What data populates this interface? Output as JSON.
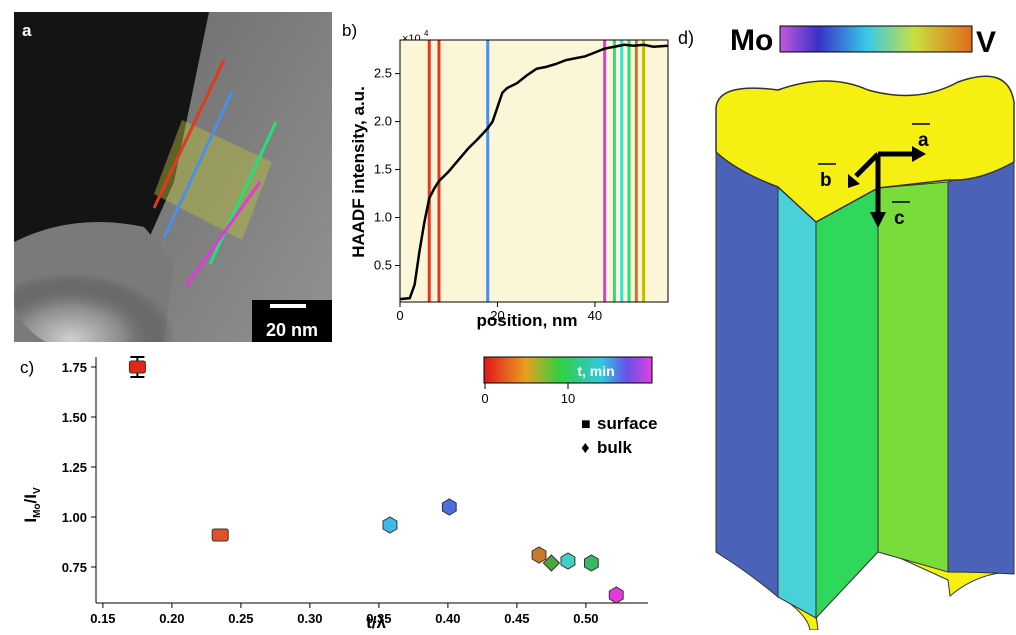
{
  "panel_a": {
    "label": "a",
    "scalebar_label": "20 nm",
    "line_colors": [
      "#e03a1e",
      "#4a8fe8",
      "#24e07a",
      "#e03ad8",
      "#c8b800"
    ]
  },
  "panel_b": {
    "label": "b)",
    "exponent": "×10",
    "exponent_power": "4",
    "ylabel": "HAADF intensity, a.u.",
    "xlabel": "position, nm",
    "chart_data": {
      "type": "line",
      "xlabel": "position, nm",
      "ylabel": "HAADF intensity, a.u.",
      "xlim": [
        0,
        55
      ],
      "ylim": [
        0.12,
        2.85
      ],
      "xticks": [
        0,
        20,
        40
      ],
      "yticks": [
        0.5,
        1.0,
        1.5,
        2.0,
        2.5
      ],
      "ytick_labels": [
        "0.5",
        "1.0",
        "1.5",
        "2.0",
        "2.5"
      ],
      "x": [
        0,
        2,
        3,
        4,
        5,
        6,
        7,
        8,
        10,
        12,
        14,
        16,
        18,
        19,
        20,
        21,
        22,
        24,
        26,
        28,
        30,
        32,
        34,
        36,
        38,
        40,
        42,
        44,
        46,
        48,
        50,
        52,
        55
      ],
      "y": [
        0.15,
        0.16,
        0.3,
        0.65,
        0.95,
        1.2,
        1.3,
        1.38,
        1.48,
        1.6,
        1.72,
        1.82,
        1.93,
        2.0,
        2.15,
        2.3,
        2.35,
        2.4,
        2.48,
        2.55,
        2.57,
        2.6,
        2.64,
        2.66,
        2.68,
        2.72,
        2.76,
        2.78,
        2.8,
        2.79,
        2.8,
        2.78,
        2.79
      ],
      "marker_lines": [
        {
          "x": 6.0,
          "color": "#e03a1e"
        },
        {
          "x": 8.0,
          "color": "#e03a1e"
        },
        {
          "x": 18.0,
          "color": "#4a8fe8"
        },
        {
          "x": 42.0,
          "color": "#e03ad8"
        },
        {
          "x": 44.0,
          "color": "#24e07a"
        },
        {
          "x": 45.5,
          "color": "#3ee0d0"
        },
        {
          "x": 47.0,
          "color": "#24e07a"
        },
        {
          "x": 48.5,
          "color": "#c87a2a"
        },
        {
          "x": 50.0,
          "color": "#c8b800"
        }
      ],
      "background": "#fbf6d8"
    }
  },
  "panel_c": {
    "label": "c)",
    "ylabel_main": "I",
    "ylabel_sub1": "Mo",
    "ylabel_mid": "/I",
    "ylabel_sub2": "V",
    "xlabel": "t/λ",
    "colorbar_label": "t, min",
    "colorbar_ticks": [
      "0",
      "10"
    ],
    "legend": [
      {
        "marker": "■",
        "label": "surface"
      },
      {
        "marker": "♦",
        "label": "bulk"
      }
    ],
    "chart_data": {
      "type": "scatter",
      "xlabel": "t/λ",
      "xlim": [
        0.145,
        0.545
      ],
      "ylim": [
        0.57,
        1.8
      ],
      "xticks": [
        0.15,
        0.2,
        0.25,
        0.3,
        0.35,
        0.4,
        0.45,
        0.5
      ],
      "xtick_labels": [
        "0.15",
        "0.20",
        "0.25",
        "0.30",
        "0.35",
        "0.40",
        "0.45",
        "0.50"
      ],
      "yticks": [
        0.75,
        1.0,
        1.25,
        1.5,
        1.75
      ],
      "ytick_labels": [
        "0.75",
        "1.00",
        "1.25",
        "1.50",
        "1.75"
      ],
      "points": [
        {
          "x": 0.175,
          "y": 1.75,
          "marker": "square",
          "color": "#e02818",
          "err": 0.05
        },
        {
          "x": 0.235,
          "y": 0.91,
          "marker": "square",
          "color": "#e2502a"
        },
        {
          "x": 0.358,
          "y": 0.96,
          "marker": "hexagon",
          "color": "#40b8e8"
        },
        {
          "x": 0.401,
          "y": 1.05,
          "marker": "hexagon",
          "color": "#4a6ee0"
        },
        {
          "x": 0.466,
          "y": 0.81,
          "marker": "hexagon",
          "color": "#c87a2a"
        },
        {
          "x": 0.475,
          "y": 0.77,
          "marker": "diamond",
          "color": "#4aa83a"
        },
        {
          "x": 0.487,
          "y": 0.78,
          "marker": "hexagon",
          "color": "#3ed0c0"
        },
        {
          "x": 0.504,
          "y": 0.77,
          "marker": "hexagon",
          "color": "#38b860"
        },
        {
          "x": 0.522,
          "y": 0.61,
          "marker": "hexagon",
          "color": "#e03ad8"
        }
      ]
    }
  },
  "panel_d": {
    "label": "d)",
    "left_label": "Mo",
    "right_label": "V",
    "axis_a": "a",
    "axis_b": "b",
    "axis_c": "c",
    "colors": {
      "top": "#f5ef12",
      "blue": "#4a63b8",
      "cyan": "#48d2d8",
      "green": "#2fd85a",
      "lime": "#78dc3a"
    }
  }
}
